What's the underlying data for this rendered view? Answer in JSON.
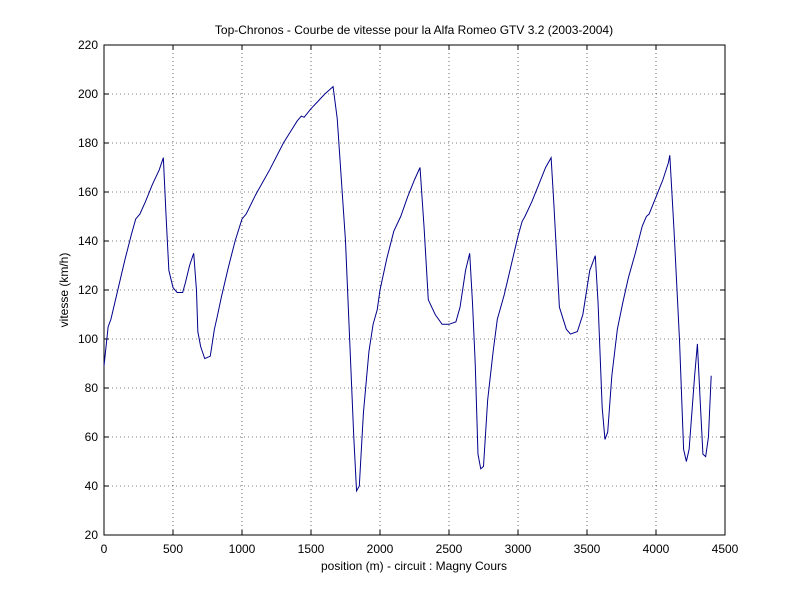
{
  "chart_data": {
    "type": "line",
    "title": "Top-Chronos - Courbe de vitesse pour la Alfa Romeo GTV 3.2 (2003-2004)",
    "xlabel": "position (m) - circuit : Magny Cours",
    "ylabel": "vitesse (km/h)",
    "color": "#00008b",
    "grid": true,
    "xlim": [
      0,
      4500
    ],
    "xticks": [
      0,
      500,
      1000,
      1500,
      2000,
      2500,
      3000,
      3500,
      4000,
      4500
    ],
    "ylim": [
      20,
      220
    ],
    "yticks": [
      20,
      40,
      60,
      80,
      100,
      120,
      140,
      160,
      180,
      200,
      220
    ],
    "x": [
      0,
      30,
      50,
      100,
      150,
      200,
      230,
      260,
      300,
      350,
      400,
      430,
      450,
      470,
      500,
      530,
      570,
      590,
      620,
      650,
      670,
      680,
      700,
      730,
      770,
      800,
      820,
      850,
      900,
      950,
      1000,
      1030,
      1100,
      1200,
      1300,
      1400,
      1430,
      1450,
      1500,
      1550,
      1600,
      1660,
      1690,
      1720,
      1750,
      1780,
      1810,
      1830,
      1850,
      1880,
      1920,
      1950,
      1980,
      2000,
      2050,
      2100,
      2150,
      2200,
      2250,
      2290,
      2320,
      2350,
      2400,
      2450,
      2500,
      2550,
      2580,
      2620,
      2650,
      2670,
      2690,
      2710,
      2730,
      2750,
      2780,
      2820,
      2850,
      2900,
      2950,
      3000,
      3030,
      3050,
      3100,
      3150,
      3200,
      3240,
      3260,
      3300,
      3350,
      3380,
      3430,
      3470,
      3520,
      3560,
      3580,
      3610,
      3630,
      3650,
      3680,
      3720,
      3760,
      3800,
      3850,
      3900,
      3930,
      3950,
      4000,
      4050,
      4090,
      4100,
      4130,
      4170,
      4200,
      4220,
      4240,
      4280,
      4300,
      4320,
      4340,
      4360,
      4380,
      4400
    ],
    "values": [
      89,
      105,
      108,
      120,
      132,
      143,
      149,
      151,
      156,
      163,
      169,
      174,
      150,
      128,
      121,
      119,
      119,
      123,
      130,
      135,
      120,
      103,
      97,
      92,
      93,
      104,
      109,
      117,
      129,
      140,
      149,
      151,
      159,
      169,
      180,
      189,
      191,
      190.5,
      194,
      197,
      200,
      203,
      190,
      165,
      140,
      100,
      60,
      38,
      40,
      70,
      95,
      106,
      112,
      120,
      133,
      144,
      150,
      158,
      165,
      170,
      145,
      116,
      110,
      106,
      106,
      107,
      113,
      128,
      135,
      115,
      90,
      53,
      47,
      48,
      75,
      95,
      108,
      118,
      130,
      142,
      148,
      150,
      156,
      163,
      170,
      174,
      155,
      113,
      104,
      102,
      103,
      110,
      128,
      134,
      115,
      72,
      59,
      62,
      85,
      104,
      115,
      125,
      135,
      146,
      150,
      151,
      158,
      165,
      172,
      175,
      145,
      100,
      55,
      50,
      55,
      85,
      98,
      75,
      53,
      52,
      60,
      85
    ]
  }
}
